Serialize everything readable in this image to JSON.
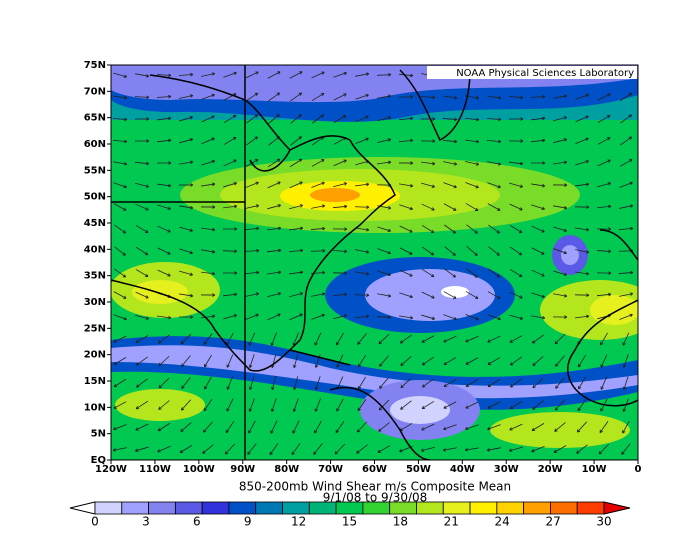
{
  "header": {
    "credit": "NOAA Physical Sciences Laboratory"
  },
  "map": {
    "title": "850-200mb Wind Shear m/s Composite Mean",
    "subtitle": "9/1/08  to 9/30/08",
    "lat_labels": [
      "EQ",
      "5N",
      "10N",
      "15N",
      "20N",
      "25N",
      "30N",
      "35N",
      "40N",
      "45N",
      "50N",
      "55N",
      "60N",
      "65N",
      "70N",
      "75N"
    ],
    "lon_labels": [
      "120W",
      "110W",
      "100W",
      "90W",
      "80W",
      "70W",
      "60W",
      "50W",
      "40W",
      "30W",
      "20W",
      "10W",
      "0"
    ]
  },
  "colorbar": {
    "ticks": [
      0,
      3,
      6,
      9,
      12,
      15,
      18,
      21,
      24,
      27,
      30
    ],
    "colors": [
      "#ffffff",
      "#d2d2ff",
      "#a0a0ff",
      "#8282f0",
      "#5a5ae6",
      "#3232dc",
      "#0050c8",
      "#0078b4",
      "#00a0a0",
      "#00b478",
      "#00c850",
      "#32d232",
      "#78dc28",
      "#b4e61e",
      "#e6f01e",
      "#fff000",
      "#ffd200",
      "#ffa000",
      "#ff6e00",
      "#ff3c00",
      "#e60000"
    ]
  }
}
